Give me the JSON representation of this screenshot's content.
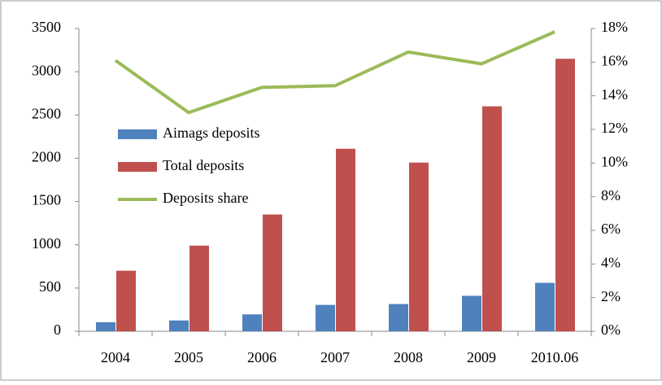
{
  "chart_data": {
    "type": "bar",
    "categories": [
      "2004",
      "2005",
      "2006",
      "2007",
      "2008",
      "2009",
      "2010.06"
    ],
    "series": [
      {
        "name": "Aimags deposits",
        "color": "#4f81bd",
        "values": [
          105,
          125,
          195,
          305,
          315,
          410,
          560
        ]
      },
      {
        "name": "Total deposits",
        "color": "#c0504d",
        "values": [
          700,
          990,
          1350,
          2110,
          1950,
          2600,
          3150
        ]
      },
      {
        "name": "Deposits share",
        "color": "#9bbb59",
        "type": "line",
        "axis": "y2",
        "values": [
          16.1,
          13.0,
          14.5,
          14.6,
          16.6,
          15.9,
          17.8
        ]
      }
    ],
    "ylim": [
      0,
      3500
    ],
    "yticks": [
      0,
      500,
      1000,
      1500,
      2000,
      2500,
      3000,
      3500
    ],
    "y2lim": [
      0,
      18
    ],
    "y2ticks": [
      {
        "value": 0,
        "label": "0%"
      },
      {
        "value": 2,
        "label": "2%"
      },
      {
        "value": 4,
        "label": "4%"
      },
      {
        "value": 6,
        "label": "6%"
      },
      {
        "value": 8,
        "label": "8%"
      },
      {
        "value": 10,
        "label": "10%"
      },
      {
        "value": 12,
        "label": "12%"
      },
      {
        "value": 14,
        "label": "14%"
      },
      {
        "value": 16,
        "label": "16%"
      },
      {
        "value": 18,
        "label": "18%"
      }
    ],
    "legend": "upper left"
  }
}
